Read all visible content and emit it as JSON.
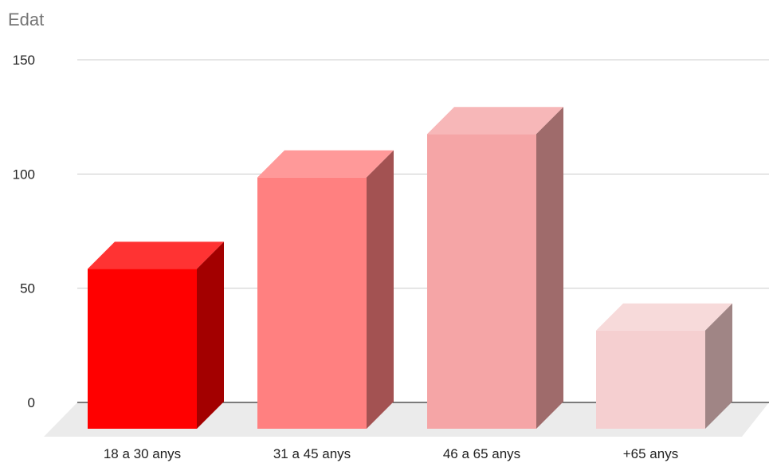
{
  "chart_data": {
    "type": "bar",
    "title": "Edat",
    "categories": [
      "18 a 30 anys",
      "31 a 45 anys",
      "46 a 65 anys",
      "+65 anys"
    ],
    "values": [
      70,
      110,
      129,
      43
    ],
    "ylim": [
      0,
      150
    ],
    "yticks": [
      0,
      50,
      100,
      150
    ],
    "grid": true,
    "three_d": true,
    "colors": {
      "bars": [
        {
          "front": "#ff0000",
          "top": "#ff3333",
          "side": "#a30000"
        },
        {
          "front": "#ff8080",
          "top": "#ff9999",
          "side": "#a35252"
        },
        {
          "front": "#f5a5a6",
          "top": "#f7b7b8",
          "side": "#9f6b6b"
        },
        {
          "front": "#f5cfd0",
          "top": "#f7dada",
          "side": "#a08585"
        }
      ],
      "grid": "#cccccc",
      "floor": "#ebebeb",
      "axis": "#333333"
    }
  }
}
